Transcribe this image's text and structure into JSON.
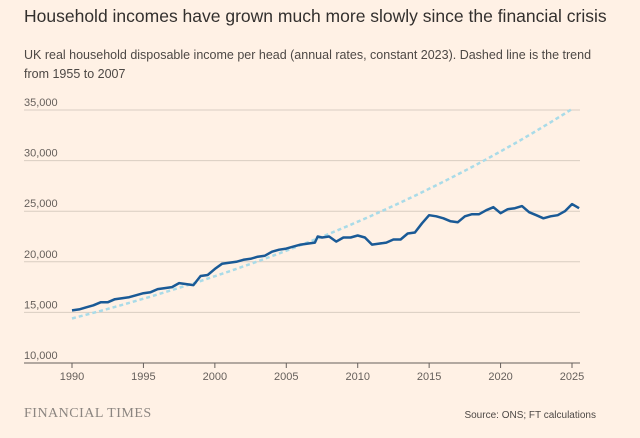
{
  "title": "Household incomes have grown much more slowly since the financial crisis",
  "subtitle": "UK real household disposable income per head (annual rates, constant 2023). Dashed line is the trend from 1955 to 2007",
  "brand": "FINANCIAL TIMES",
  "source": "Source: ONS; FT calculations",
  "colors": {
    "actual": "#1a5a96",
    "trend": "#a9dbe8",
    "grid": "#d9cdc2",
    "background": "#fff1e5"
  },
  "chart_data": {
    "type": "line",
    "xlim": [
      1990,
      2025.6
    ],
    "ylim": [
      10000,
      35000
    ],
    "xticks": [
      1990,
      1995,
      2000,
      2005,
      2010,
      2015,
      2020,
      2025
    ],
    "yticks": [
      10000,
      15000,
      20000,
      25000,
      30000,
      35000
    ],
    "ytick_labels": [
      "10,000",
      "15,000",
      "20,000",
      "25,000",
      "30,000",
      "35,000"
    ],
    "grid": true,
    "series": [
      {
        "style": "solid",
        "x": [
          1990,
          1990.5,
          1991,
          1991.5,
          1992,
          1992.5,
          1993,
          1993.5,
          1994,
          1994.5,
          1995,
          1995.5,
          1996,
          1996.5,
          1997,
          1997.5,
          1998,
          1998.5,
          1999,
          1999.5,
          2000,
          2000.5,
          2001,
          2001.5,
          2002,
          2002.5,
          2003,
          2003.5,
          2004,
          2004.5,
          2005,
          2005.5,
          2006,
          2006.5,
          2007,
          2007.2,
          2007.5,
          2008,
          2008.5,
          2009,
          2009.5,
          2010,
          2010.5,
          2011,
          2011.5,
          2012,
          2012.5,
          2013,
          2013.5,
          2014,
          2014.5,
          2015,
          2015.5,
          2016,
          2016.5,
          2017,
          2017.5,
          2018,
          2018.5,
          2019,
          2019.5,
          2020,
          2020.5,
          2021,
          2021.5,
          2022,
          2022.5,
          2023,
          2023.5,
          2024,
          2024.5,
          2025,
          2025.5
        ],
        "y": [
          15200,
          15300,
          15500,
          15700,
          16000,
          16000,
          16300,
          16400,
          16500,
          16700,
          16900,
          17000,
          17300,
          17400,
          17500,
          17900,
          17800,
          17700,
          18600,
          18700,
          19300,
          19800,
          19900,
          20000,
          20200,
          20300,
          20500,
          20600,
          21000,
          21200,
          21300,
          21500,
          21700,
          21800,
          21900,
          22500,
          22400,
          22500,
          22000,
          22400,
          22400,
          22600,
          22400,
          21700,
          21800,
          21900,
          22200,
          22200,
          22800,
          22900,
          23800,
          24600,
          24500,
          24300,
          24000,
          23900,
          24500,
          24700,
          24700,
          25100,
          25400,
          24800,
          25200,
          25300,
          25500,
          24900,
          24600,
          24300,
          24500,
          24600,
          25000,
          25700,
          25300
        ]
      },
      {
        "style": "dashed",
        "trend_start": 14400,
        "trend_end": 35100
      }
    ]
  }
}
